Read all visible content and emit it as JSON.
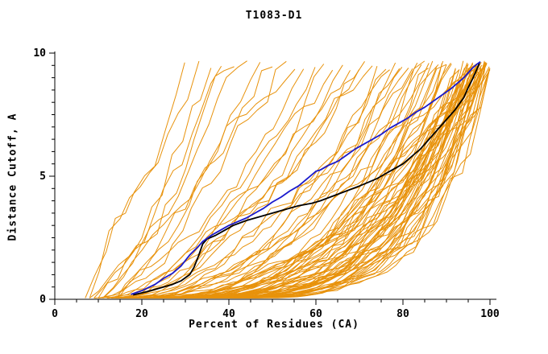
{
  "chart_data": {
    "type": "line",
    "title": "T1083-D1",
    "xlabel": "Percent of Residues (CA)",
    "ylabel": "Distance Cutoff, A",
    "xlim": [
      0,
      100
    ],
    "ylim": [
      0,
      10
    ],
    "x_major_ticks": [
      0,
      20,
      40,
      60,
      80,
      100
    ],
    "x_minor_step": 5,
    "y_major_ticks": [
      0,
      5,
      10
    ],
    "y_minor_step": 0.5,
    "grid": false,
    "legend": "none",
    "colors": {
      "ensemble": "#E8920B",
      "highlight_blue": "#1A1ACD",
      "highlight_black": "#000000",
      "axis": "#000000"
    },
    "series": [
      {
        "name": "highlight-model-blue",
        "color": "#1A1ACD",
        "width": 1.8,
        "points": [
          [
            17.5,
            0.2
          ],
          [
            20,
            0.35
          ],
          [
            23,
            0.6
          ],
          [
            25,
            0.85
          ],
          [
            27,
            1.05
          ],
          [
            29,
            1.35
          ],
          [
            31,
            1.8
          ],
          [
            33,
            2.15
          ],
          [
            34,
            2.35
          ],
          [
            36,
            2.6
          ],
          [
            38,
            2.8
          ],
          [
            40,
            3.0
          ],
          [
            42,
            3.15
          ],
          [
            44,
            3.3
          ],
          [
            46,
            3.5
          ],
          [
            48,
            3.7
          ],
          [
            50,
            3.95
          ],
          [
            52,
            4.15
          ],
          [
            54,
            4.4
          ],
          [
            56,
            4.6
          ],
          [
            58,
            4.9
          ],
          [
            60,
            5.2
          ],
          [
            61,
            5.25
          ],
          [
            63,
            5.45
          ],
          [
            65,
            5.6
          ],
          [
            67,
            5.85
          ],
          [
            69,
            6.1
          ],
          [
            71,
            6.3
          ],
          [
            73,
            6.5
          ],
          [
            75,
            6.7
          ],
          [
            77,
            6.95
          ],
          [
            79,
            7.15
          ],
          [
            81,
            7.35
          ],
          [
            83,
            7.6
          ],
          [
            85,
            7.8
          ],
          [
            87,
            8.05
          ],
          [
            89,
            8.3
          ],
          [
            91,
            8.55
          ],
          [
            93,
            8.85
          ],
          [
            94,
            9.0
          ],
          [
            95,
            9.2
          ],
          [
            96,
            9.4
          ],
          [
            97,
            9.55
          ],
          [
            97.8,
            9.65
          ]
        ]
      },
      {
        "name": "highlight-model-black",
        "color": "#000000",
        "width": 1.8,
        "points": [
          [
            18,
            0.18
          ],
          [
            21,
            0.3
          ],
          [
            24,
            0.45
          ],
          [
            27,
            0.6
          ],
          [
            29,
            0.75
          ],
          [
            31,
            1.0
          ],
          [
            32,
            1.3
          ],
          [
            33,
            1.75
          ],
          [
            34,
            2.25
          ],
          [
            35,
            2.45
          ],
          [
            37,
            2.6
          ],
          [
            39,
            2.8
          ],
          [
            41,
            3.0
          ],
          [
            44,
            3.2
          ],
          [
            47,
            3.35
          ],
          [
            50,
            3.5
          ],
          [
            53,
            3.65
          ],
          [
            56,
            3.8
          ],
          [
            59,
            3.9
          ],
          [
            61,
            4.0
          ],
          [
            64,
            4.2
          ],
          [
            67,
            4.4
          ],
          [
            70,
            4.6
          ],
          [
            72,
            4.75
          ],
          [
            74,
            4.9
          ],
          [
            76,
            5.1
          ],
          [
            78,
            5.3
          ],
          [
            80,
            5.5
          ],
          [
            82,
            5.8
          ],
          [
            84,
            6.1
          ],
          [
            86,
            6.5
          ],
          [
            88,
            6.9
          ],
          [
            90,
            7.3
          ],
          [
            92,
            7.7
          ],
          [
            93,
            7.95
          ],
          [
            94,
            8.2
          ],
          [
            95,
            8.6
          ],
          [
            96,
            8.95
          ],
          [
            97,
            9.35
          ],
          [
            97.6,
            9.6
          ]
        ]
      }
    ],
    "ensemble": {
      "name": "all-server-models",
      "color": "#E8920B",
      "width": 1,
      "y_top_range": [
        9.3,
        9.7
      ],
      "curves_format": [
        "x_start",
        "x_end",
        "shape_exponent"
      ],
      "curves": [
        [
          7,
          30,
          1.2
        ],
        [
          8,
          33,
          1.0
        ],
        [
          9,
          36,
          1.3
        ],
        [
          10,
          38,
          1.1
        ],
        [
          8,
          41,
          1.4
        ],
        [
          11,
          44,
          1.2
        ],
        [
          9,
          47,
          1.5
        ],
        [
          12,
          50,
          1.3
        ],
        [
          10,
          53,
          1.6
        ],
        [
          13,
          55,
          1.2
        ],
        [
          11,
          57,
          1.5
        ],
        [
          14,
          60,
          1.4
        ],
        [
          12,
          62,
          1.7
        ],
        [
          15,
          64,
          1.3
        ],
        [
          13,
          66,
          1.6
        ],
        [
          10,
          68,
          1.8
        ],
        [
          14,
          70,
          1.6
        ],
        [
          16,
          71,
          2.0
        ],
        [
          12,
          73,
          1.8
        ],
        [
          17,
          74,
          2.1
        ],
        [
          15,
          76,
          1.9
        ],
        [
          18,
          77,
          2.2
        ],
        [
          13,
          78,
          2.0
        ],
        [
          19,
          79,
          2.3
        ],
        [
          16,
          80,
          2.1
        ],
        [
          20,
          81,
          2.4
        ],
        [
          14,
          82,
          2.2
        ],
        [
          21,
          83,
          2.5
        ],
        [
          17,
          84,
          2.3
        ],
        [
          22,
          85,
          2.6
        ],
        [
          15,
          86,
          2.4
        ],
        [
          23,
          86,
          2.7
        ],
        [
          18,
          87,
          2.5
        ],
        [
          24,
          88,
          2.8
        ],
        [
          16,
          88,
          2.6
        ],
        [
          19,
          89,
          2.9
        ],
        [
          25,
          89,
          3.0
        ],
        [
          17,
          90,
          2.7
        ],
        [
          20,
          90,
          3.1
        ],
        [
          26,
          91,
          2.8
        ],
        [
          18,
          91,
          3.2
        ],
        [
          21,
          92,
          2.9
        ],
        [
          27,
          92,
          3.3
        ],
        [
          19,
          93,
          3.0
        ],
        [
          22,
          93,
          3.4
        ],
        [
          28,
          94,
          3.1
        ],
        [
          20,
          94,
          3.5
        ],
        [
          23,
          94,
          3.2
        ],
        [
          29,
          95,
          3.6
        ],
        [
          21,
          95,
          3.3
        ],
        [
          24,
          95,
          3.7
        ],
        [
          30,
          96,
          3.4
        ],
        [
          22,
          96,
          3.8
        ],
        [
          25,
          96,
          3.5
        ],
        [
          31,
          97,
          3.9
        ],
        [
          23,
          97,
          3.6
        ],
        [
          26,
          97,
          4.0
        ],
        [
          32,
          97,
          3.7
        ],
        [
          24,
          98,
          4.1
        ],
        [
          27,
          98,
          3.8
        ],
        [
          33,
          98,
          4.2
        ],
        [
          25,
          98,
          3.9
        ],
        [
          28,
          99,
          4.3
        ],
        [
          34,
          99,
          4.0
        ],
        [
          26,
          99,
          4.4
        ],
        [
          29,
          99,
          4.1
        ],
        [
          35,
          99,
          3.0
        ],
        [
          27,
          100,
          4.5
        ],
        [
          30,
          100,
          4.2
        ],
        [
          28,
          100,
          3.5
        ],
        [
          31,
          100,
          4.6
        ],
        [
          23,
          99,
          2.2
        ],
        [
          19,
          98,
          2.0
        ],
        [
          16,
          96,
          1.9
        ],
        [
          25,
          97,
          2.4
        ],
        [
          21,
          99,
          2.6
        ],
        [
          18,
          95,
          2.1
        ],
        [
          29,
          98,
          2.8
        ],
        [
          24,
          96,
          2.3
        ],
        [
          20,
          97,
          2.5
        ],
        [
          26,
          98,
          3.3
        ],
        [
          22,
          97,
          3.1
        ],
        [
          30,
          99,
          3.8
        ],
        [
          33,
          100,
          4.0
        ],
        [
          27,
          96,
          2.9
        ],
        [
          24,
          99,
          3.5
        ],
        [
          36,
          100,
          4.4
        ],
        [
          32,
          99,
          2.6
        ],
        [
          34,
          98,
          3.2
        ],
        [
          28,
          97,
          2.7
        ]
      ]
    }
  }
}
